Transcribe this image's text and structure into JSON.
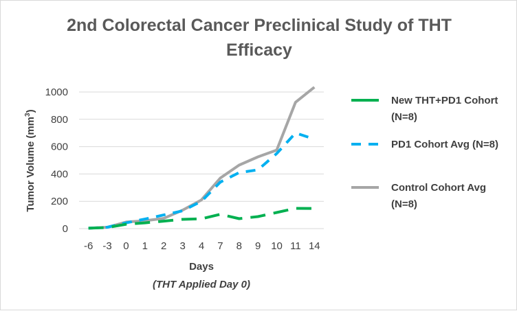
{
  "chart_data": {
    "type": "line",
    "title_line1": "2nd Colorectal Cancer Preclinical Study of THT",
    "title_line2": "Efficacy",
    "xlabel": "Days",
    "xlabel_sub": "(THT Applied Day 0)",
    "ylabel_main": "Tumor Volume (mm",
    "ylabel_sup": "3",
    "ylabel_close": ")",
    "categories": [
      "-6",
      "-3",
      "0",
      "1",
      "2",
      "3",
      "4",
      "7",
      "8",
      "9",
      "10",
      "11",
      "14"
    ],
    "ylim": [
      0,
      1000
    ],
    "yticks": [
      0,
      200,
      400,
      600,
      800,
      1000
    ],
    "grid": true,
    "legend_position": "right",
    "series": [
      {
        "name_line1": "New THT+PD1 Cohort",
        "name_line2": "(N=8)",
        "color": "#00b050",
        "dash": "long-dash",
        "values": [
          3,
          8,
          32,
          42,
          55,
          68,
          72,
          105,
          73,
          88,
          118,
          148,
          147
        ]
      },
      {
        "name_line1": "PD1 Cohort Avg (N=8)",
        "name_line2": "",
        "color": "#00b0f0",
        "dash": "dash",
        "values": [
          3,
          10,
          42,
          70,
          100,
          130,
          200,
          340,
          410,
          430,
          550,
          700,
          655
        ]
      },
      {
        "name_line1": "Control Cohort Avg",
        "name_line2": "(N=8)",
        "color": "#a6a6a6",
        "dash": "solid",
        "values": [
          3,
          10,
          48,
          58,
          75,
          135,
          210,
          370,
          465,
          525,
          575,
          925,
          1035
        ]
      }
    ]
  }
}
